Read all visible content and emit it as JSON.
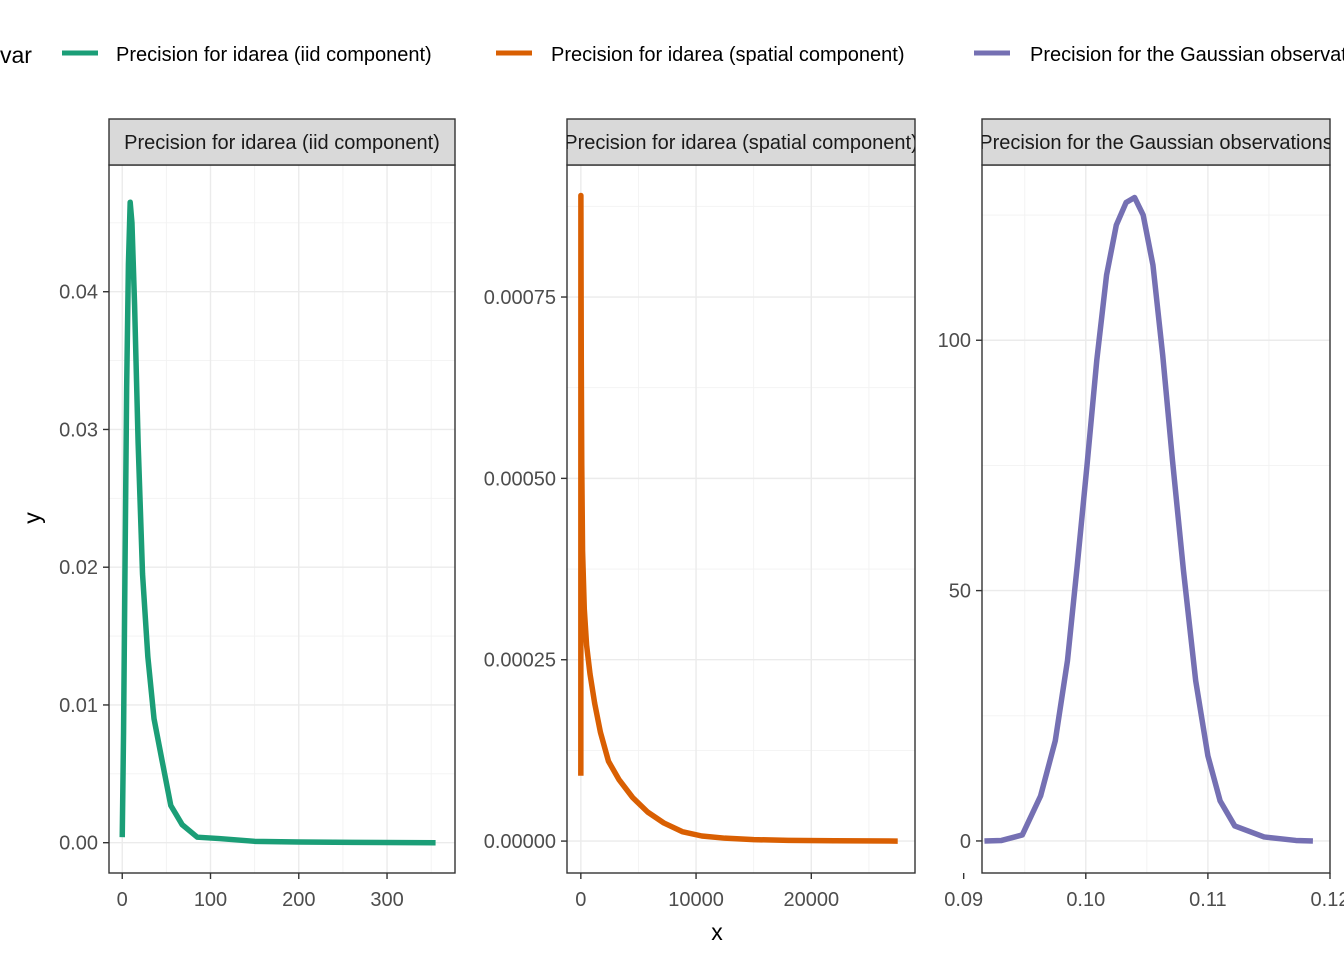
{
  "legend": {
    "title": "var",
    "position": "top",
    "entries": [
      {
        "label": "Precision for idarea (iid component)",
        "color": "#1B9E77"
      },
      {
        "label": "Precision for idarea (spatial component)",
        "color": "#D95F02"
      },
      {
        "label": "Precision for the Gaussian observations",
        "color": "#7570B3"
      }
    ]
  },
  "axes": {
    "xlabel": "x",
    "ylabel": "y"
  },
  "chart_data": [
    {
      "type": "line",
      "strip_label": "Precision for idarea (iid component)",
      "color": "#1B9E77",
      "grid": true,
      "xlim": [
        -15,
        377
      ],
      "ylim": [
        -0.0022,
        0.0492
      ],
      "xticks": [
        {
          "value": 0,
          "label": "0"
        },
        {
          "value": 100,
          "label": "100"
        },
        {
          "value": 200,
          "label": "200"
        },
        {
          "value": 300,
          "label": "300"
        }
      ],
      "yticks": [
        {
          "value": 0,
          "label": "0.00"
        },
        {
          "value": 0.01,
          "label": "0.01"
        },
        {
          "value": 0.02,
          "label": "0.02"
        },
        {
          "value": 0.03,
          "label": "0.03"
        },
        {
          "value": 0.04,
          "label": "0.04"
        }
      ],
      "x": [
        0,
        1.5,
        3,
        5,
        7,
        9,
        11,
        14,
        18,
        23,
        29,
        36,
        45,
        55,
        68,
        85,
        110,
        150,
        200,
        260,
        355
      ],
      "y": [
        0.0004,
        0.008,
        0.019,
        0.033,
        0.042,
        0.0465,
        0.045,
        0.039,
        0.029,
        0.0195,
        0.0135,
        0.009,
        0.006,
        0.0027,
        0.0013,
        0.0004,
        0.0003,
        0.0001,
        5e-05,
        2e-05,
        0.0
      ]
    },
    {
      "type": "line",
      "strip_label": "Precision for idarea (spatial component)",
      "color": "#D95F02",
      "grid": true,
      "xlim": [
        -1200,
        29000
      ],
      "ylim": [
        -4.4e-05,
        0.000932
      ],
      "xticks": [
        {
          "value": 0,
          "label": "0"
        },
        {
          "value": 10000,
          "label": "10000"
        },
        {
          "value": 20000,
          "label": "20000"
        }
      ],
      "yticks": [
        {
          "value": 0,
          "label": "0.00000"
        },
        {
          "value": 0.00025,
          "label": "0.00025"
        },
        {
          "value": 0.0005,
          "label": "0.00050"
        },
        {
          "value": 0.00075,
          "label": "0.00075"
        }
      ],
      "x": [
        0,
        5,
        10,
        20,
        40,
        80,
        150,
        300,
        500,
        800,
        1200,
        1700,
        2400,
        3300,
        4500,
        5800,
        7200,
        8800,
        10500,
        12500,
        15000,
        18000,
        22000,
        27500
      ],
      "y": [
        9e-05,
        0.00089,
        0.00086,
        0.00078,
        0.00066,
        0.00052,
        0.0004,
        0.00032,
        0.00027,
        0.00023,
        0.00019,
        0.00015,
        0.00011,
        8.5e-05,
        6e-05,
        4e-05,
        2.5e-05,
        1.3e-05,
        7e-06,
        4e-06,
        2e-06,
        1e-06,
        5e-07,
        0.0
      ]
    },
    {
      "type": "line",
      "strip_label": "Precision for the Gaussian observations",
      "color": "#7570B3",
      "grid": true,
      "xlim": [
        0.0915,
        0.12
      ],
      "ylim": [
        -6.4,
        135
      ],
      "xticks": [
        {
          "value": 0.09,
          "label": "0.09"
        },
        {
          "value": 0.1,
          "label": "0.10"
        },
        {
          "value": 0.11,
          "label": "0.11"
        },
        {
          "value": 0.12,
          "label": "0.12"
        }
      ],
      "yticks": [
        {
          "value": 0,
          "label": "0"
        },
        {
          "value": 50,
          "label": "50"
        },
        {
          "value": 100,
          "label": "100"
        }
      ],
      "x": [
        0.0917,
        0.0931,
        0.0948,
        0.0963,
        0.0975,
        0.0985,
        0.0993,
        0.1001,
        0.1009,
        0.1017,
        0.1025,
        0.1033,
        0.104,
        0.1047,
        0.1055,
        0.1063,
        0.1071,
        0.108,
        0.109,
        0.11,
        0.111,
        0.1122,
        0.1146,
        0.1172,
        0.1186
      ],
      "y": [
        0,
        0.1,
        1.2,
        9,
        20,
        36,
        55,
        75,
        96,
        113,
        123,
        127.5,
        128.5,
        125,
        115,
        97,
        76,
        54,
        32,
        17,
        8,
        3,
        0.8,
        0.1,
        0
      ]
    }
  ]
}
